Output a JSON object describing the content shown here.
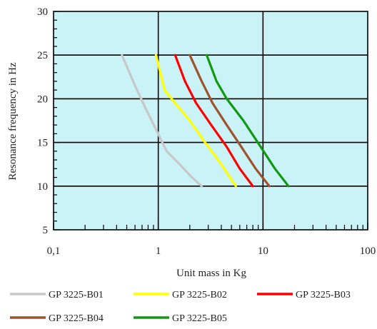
{
  "chart_data": {
    "type": "line",
    "title": "",
    "xlabel": "Unit mass in Kg",
    "ylabel": "Resonance frequency in Hz",
    "x_scale": "log",
    "xlim": [
      0.1,
      100
    ],
    "ylim": [
      5,
      30
    ],
    "x_ticks": [
      0.1,
      1,
      10,
      100
    ],
    "x_tick_labels": [
      "0,1",
      "1",
      "10",
      "100"
    ],
    "y_ticks": [
      5,
      10,
      15,
      20,
      25,
      30
    ],
    "y_tick_labels": [
      "5",
      "10",
      "15",
      "20",
      "25",
      "30"
    ],
    "grid": true,
    "plot_background": "#c9f3f7",
    "legend_position": "bottom",
    "series": [
      {
        "name": "GP 3225-B01",
        "color": "#c8c8c8",
        "points": [
          [
            0.45,
            25
          ],
          [
            0.6,
            21.5
          ],
          [
            0.75,
            19
          ],
          [
            0.95,
            16.5
          ],
          [
            1.2,
            14
          ],
          [
            1.6,
            12.5
          ],
          [
            2.1,
            11
          ],
          [
            2.6,
            10
          ]
        ]
      },
      {
        "name": "GP 3225-B02",
        "color": "#ffff00",
        "points": [
          [
            0.95,
            25
          ],
          [
            1.15,
            21
          ],
          [
            1.45,
            19.5
          ],
          [
            2.0,
            17.5
          ],
          [
            2.8,
            15
          ],
          [
            4.0,
            12.5
          ],
          [
            5.5,
            10
          ]
        ]
      },
      {
        "name": "GP 3225-B03",
        "color": "#ff0000",
        "points": [
          [
            1.45,
            25
          ],
          [
            1.8,
            22
          ],
          [
            2.3,
            19.5
          ],
          [
            3.2,
            17
          ],
          [
            4.5,
            14.5
          ],
          [
            6.0,
            12
          ],
          [
            8.0,
            10
          ]
        ]
      },
      {
        "name": "GP 3225-B04",
        "color": "#a0522d",
        "points": [
          [
            2.0,
            25
          ],
          [
            2.6,
            22
          ],
          [
            3.3,
            19.5
          ],
          [
            4.5,
            17
          ],
          [
            6.2,
            14.5
          ],
          [
            8.5,
            12
          ],
          [
            11.5,
            10
          ]
        ]
      },
      {
        "name": "GP 3225-B05",
        "color": "#119911",
        "points": [
          [
            2.9,
            25
          ],
          [
            3.6,
            22
          ],
          [
            4.5,
            20
          ],
          [
            6.5,
            17.5
          ],
          [
            9.5,
            14.5
          ],
          [
            13,
            12
          ],
          [
            17.5,
            10
          ]
        ]
      }
    ]
  }
}
